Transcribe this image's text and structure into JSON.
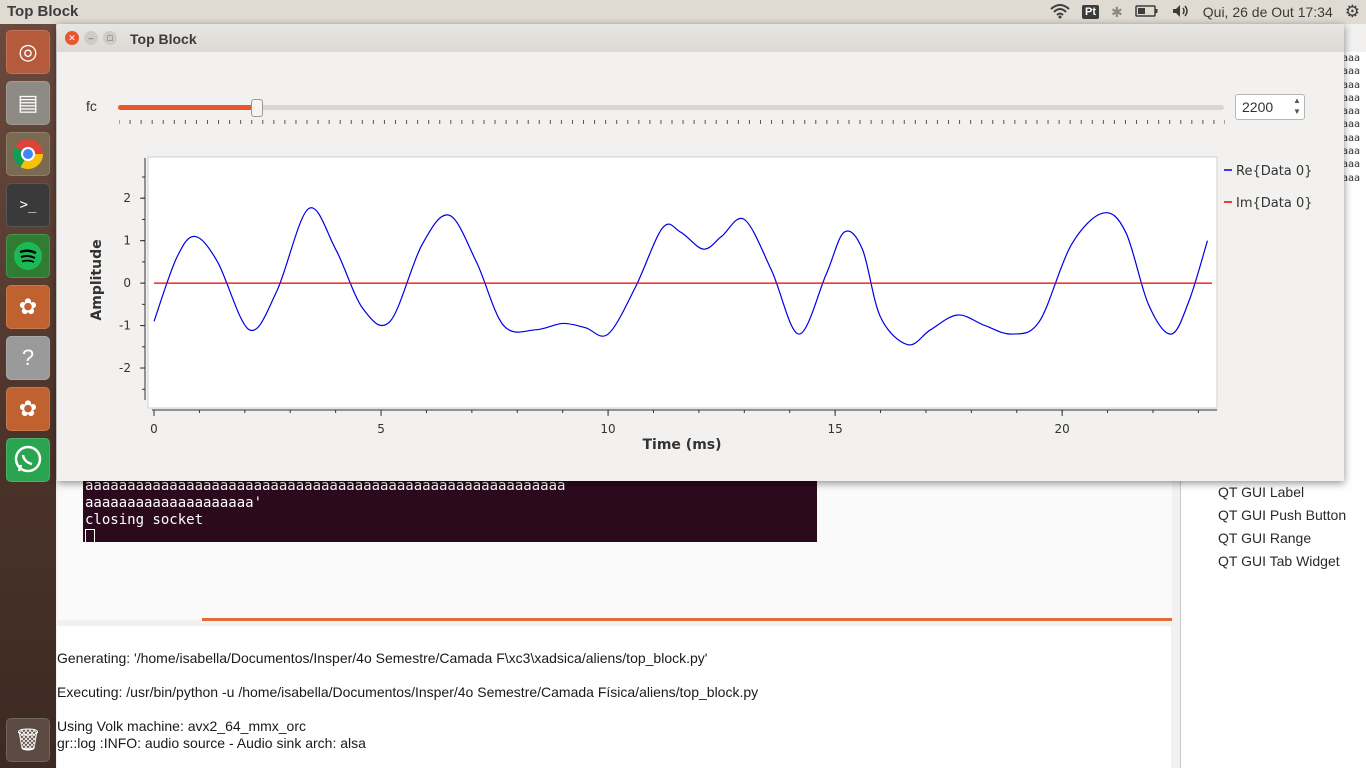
{
  "topbar": {
    "app_title": "Top Block",
    "kbd_layout": "Pt",
    "datetime": "Qui, 26 de Out 17:34"
  },
  "launcher": {
    "items": [
      "ubuntu-icon",
      "files-icon",
      "chrome-icon",
      "terminal-icon",
      "spotify-icon",
      "gnuradio-icon",
      "help-icon",
      "gnuradio-icon",
      "whatsapp-icon",
      "trash-icon"
    ]
  },
  "background_app": {
    "right_strip_text": "aaa",
    "block_tree": [
      "QT GUI Label",
      "QT GUI Push Button",
      "QT GUI Range",
      "QT GUI Tab Widget"
    ],
    "terminal_lines": [
      "aaaaaaaaaaaaaaaaaaaaaaaaaaaaaaaaaaaaaaaaaaaaaaaaaaaaaaaaa",
      "aaaaaaaaaaaaaaaaaaaa'",
      "closing socket"
    ],
    "console_lines": [
      "Generating: '/home/isabella/Documentos/Insper/4o Semestre/Camada F\\xc3\\xadsica/aliens/top_block.py'",
      "Executing: /usr/bin/python -u /home/isabella/Documentos/Insper/4o Semestre/Camada Física/aliens/top_block.py",
      "Using Volk machine: avx2_64_mmx_orc",
      "gr::log :INFO: audio source - Audio sink arch: alsa"
    ]
  },
  "window": {
    "title": "Top Block",
    "fc_label": "fc",
    "fc_value": "2200",
    "fc_fraction": 0.125
  },
  "chart_data": {
    "type": "line",
    "xlabel": "Time (ms)",
    "ylabel": "Amplitude",
    "xlim": [
      0,
      23.3
    ],
    "ylim": [
      -2.8,
      2.9
    ],
    "xticks": [
      0,
      5,
      10,
      15,
      20
    ],
    "yticks": [
      2,
      1,
      0,
      -1,
      -2
    ],
    "grid": false,
    "legend_position": "right",
    "series": [
      {
        "name": "Re{Data 0}",
        "color": "#0000e6",
        "x": [
          0,
          0.5,
          0.9,
          1.4,
          2.1,
          2.7,
          3.4,
          4.0,
          4.6,
          5.2,
          5.9,
          6.5,
          7.1,
          7.7,
          8.4,
          9.0,
          9.5,
          10.0,
          10.6,
          11.2,
          11.6,
          12.1,
          12.5,
          13.0,
          13.6,
          14.2,
          14.8,
          15.2,
          15.6,
          16.0,
          16.6,
          17.1,
          17.7,
          18.3,
          18.9,
          19.5,
          20.2,
          20.9,
          21.4,
          21.9,
          22.4,
          22.8,
          23.2
        ],
        "y": [
          -0.9,
          0.6,
          1.1,
          0.5,
          -1.1,
          -0.2,
          1.75,
          0.8,
          -0.6,
          -0.9,
          0.9,
          1.6,
          0.5,
          -1.0,
          -1.1,
          -0.95,
          -1.05,
          -1.2,
          -0.1,
          1.3,
          1.2,
          0.8,
          1.1,
          1.5,
          0.3,
          -1.2,
          0.2,
          1.2,
          0.8,
          -0.8,
          -1.45,
          -1.1,
          -0.75,
          -1.0,
          -1.2,
          -0.9,
          0.9,
          1.65,
          1.2,
          -0.5,
          -1.2,
          -0.4,
          1.0
        ]
      },
      {
        "name": "Im{Data 0}",
        "color": "#e60000",
        "x": [
          0,
          23.3
        ],
        "y": [
          0,
          0
        ]
      }
    ]
  }
}
